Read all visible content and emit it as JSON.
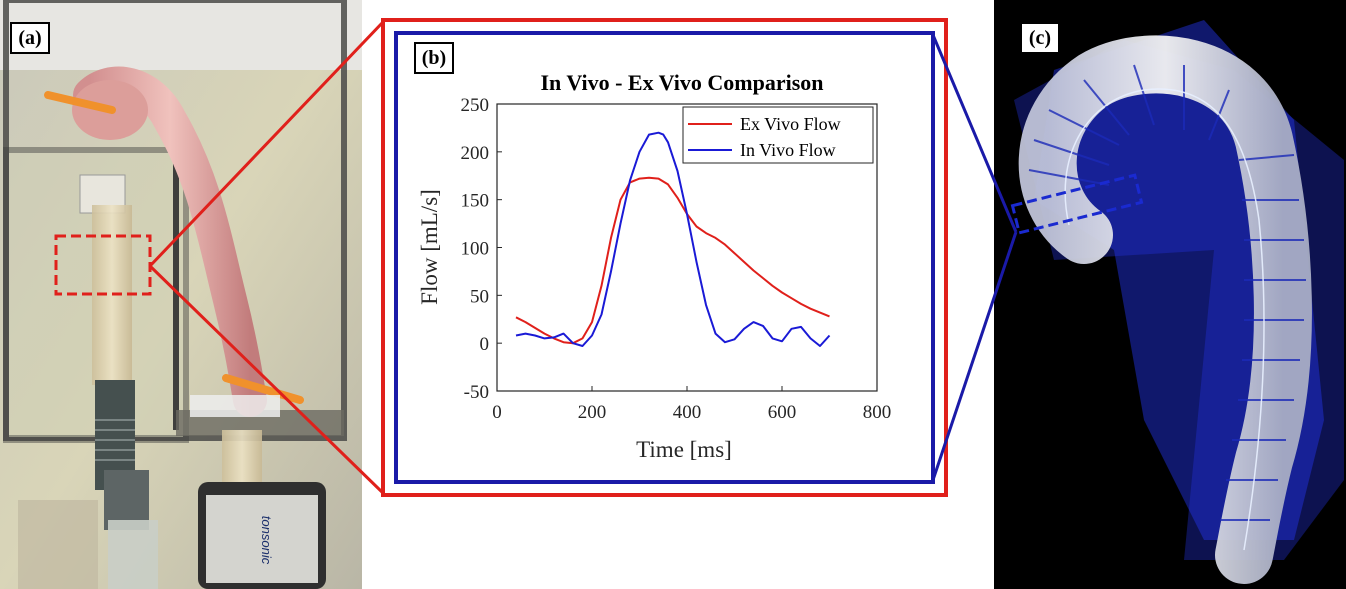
{
  "panels": {
    "a": "(a)",
    "b": "(b)",
    "c": "(c)"
  },
  "colors": {
    "red_frame": "#e0201b",
    "blue_frame": "#1a1aa8",
    "dashed_red": "#e0201b",
    "dashed_blue": "#1a2ad0"
  },
  "device_label": "tonsonic",
  "chart_data": {
    "type": "line",
    "title": "In Vivo - Ex Vivo Comparison",
    "xlabel": "Time [ms]",
    "ylabel": "Flow [mL/s]",
    "xlim": [
      0,
      800
    ],
    "ylim": [
      -50,
      250
    ],
    "xticks": [
      0,
      200,
      400,
      600,
      800
    ],
    "yticks": [
      -50,
      0,
      50,
      100,
      150,
      200,
      250
    ],
    "legend_position": "top-right",
    "series": [
      {
        "name": "Ex Vivo Flow",
        "color": "#e0201b",
        "x": [
          40,
          60,
          80,
          100,
          120,
          140,
          160,
          180,
          200,
          220,
          240,
          260,
          280,
          300,
          320,
          340,
          360,
          380,
          400,
          420,
          440,
          460,
          480,
          500,
          520,
          540,
          560,
          580,
          600,
          620,
          640,
          660,
          680,
          700
        ],
        "y": [
          27,
          22,
          16,
          10,
          5,
          1,
          0,
          5,
          22,
          60,
          110,
          150,
          168,
          172,
          173,
          172,
          166,
          152,
          135,
          122,
          115,
          110,
          103,
          94,
          85,
          76,
          68,
          60,
          53,
          47,
          41,
          36,
          32,
          28
        ]
      },
      {
        "name": "In Vivo Flow",
        "color": "#1a1ad6",
        "x": [
          40,
          60,
          80,
          100,
          120,
          140,
          160,
          180,
          200,
          220,
          240,
          260,
          280,
          300,
          320,
          340,
          350,
          360,
          380,
          400,
          420,
          440,
          460,
          480,
          500,
          520,
          540,
          560,
          580,
          600,
          620,
          640,
          660,
          680,
          700
        ],
        "y": [
          8,
          10,
          8,
          5,
          6,
          10,
          0,
          -3,
          8,
          30,
          75,
          125,
          170,
          200,
          218,
          220,
          218,
          210,
          180,
          135,
          85,
          40,
          10,
          1,
          4,
          15,
          22,
          18,
          5,
          2,
          15,
          17,
          5,
          -3,
          8
        ]
      }
    ]
  }
}
